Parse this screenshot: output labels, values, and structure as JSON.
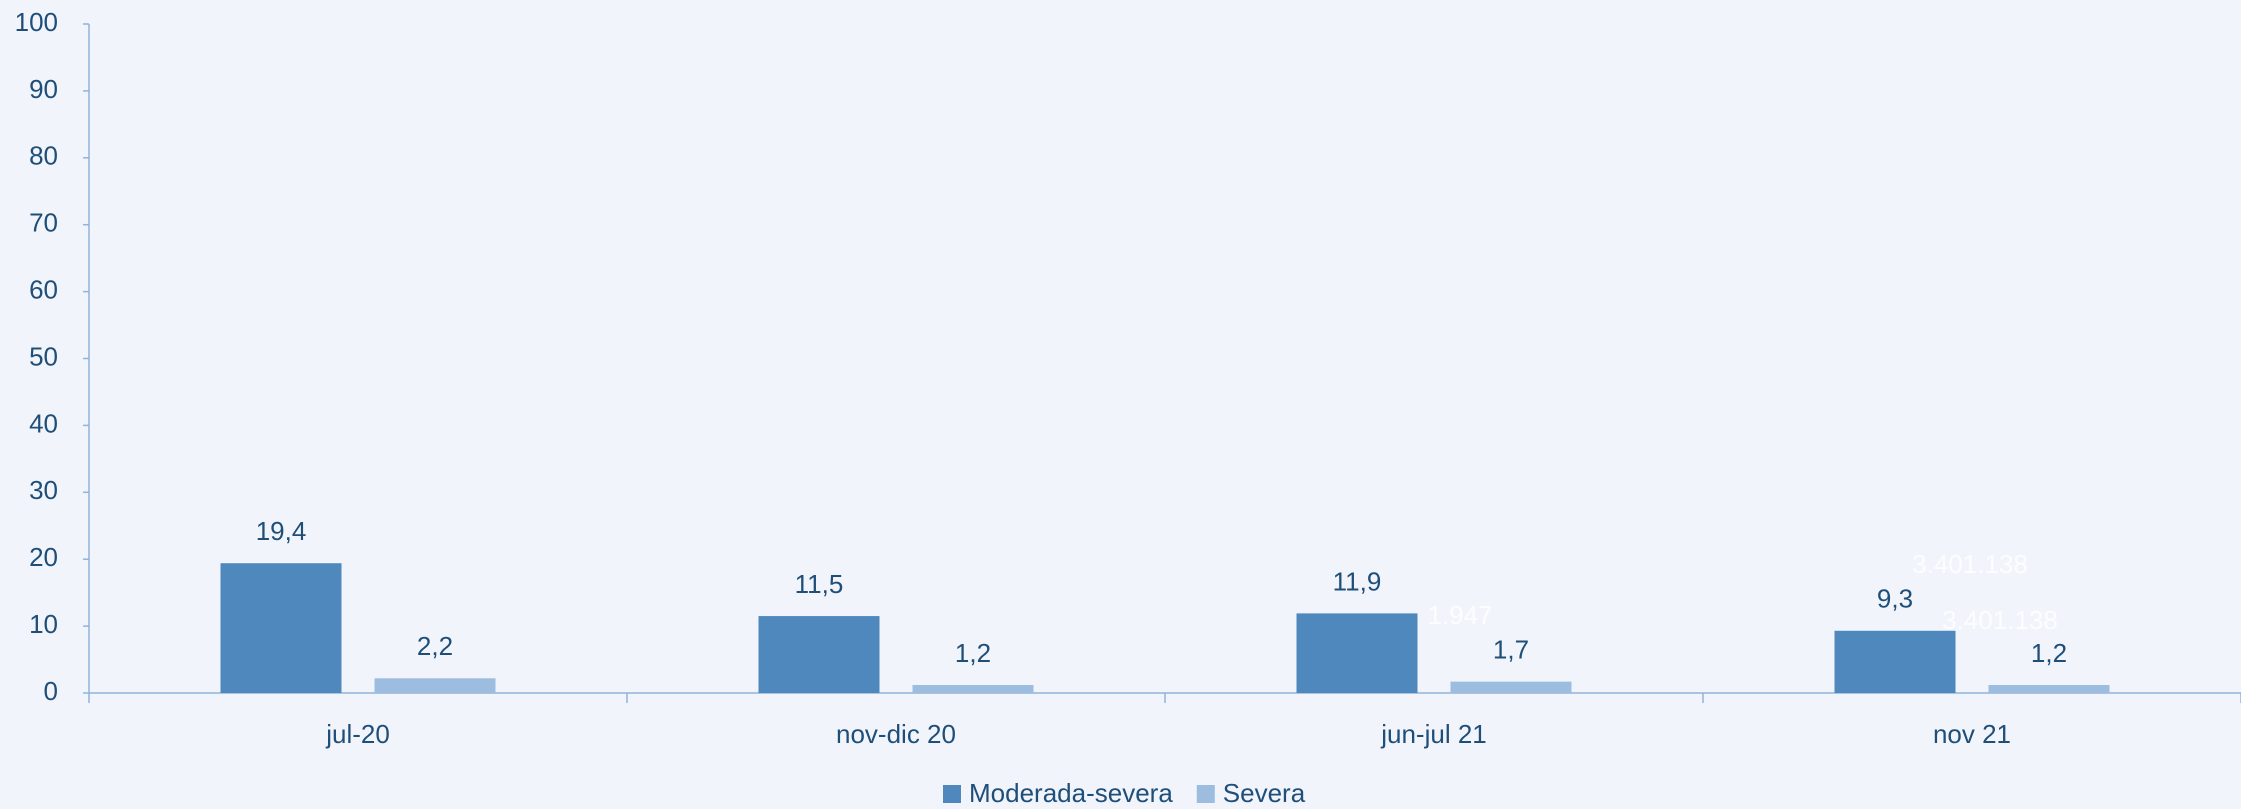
{
  "chart_data": {
    "type": "bar",
    "categories": [
      "jul-20",
      "nov-dic 20",
      "jun-jul 21",
      "nov 21"
    ],
    "series": [
      {
        "name": "Moderada-severa",
        "color": "#4f88bd",
        "values": [
          19.4,
          11.5,
          11.9,
          9.3
        ],
        "value_labels": [
          "19,4",
          "11,5",
          "11,9",
          "9,3"
        ]
      },
      {
        "name": "Severa",
        "color": "#9dbde0",
        "values": [
          2.2,
          1.2,
          1.7,
          1.2
        ],
        "value_labels": [
          "2,2",
          "1,2",
          "1,7",
          "1,2"
        ]
      }
    ],
    "ylim": [
      0,
      100
    ],
    "yticks": [
      0,
      10,
      20,
      30,
      40,
      50,
      60,
      70,
      80,
      90,
      100
    ],
    "legend": "bottom",
    "annotations": [
      "3.401.138",
      "3.401.138",
      "1.947"
    ]
  }
}
